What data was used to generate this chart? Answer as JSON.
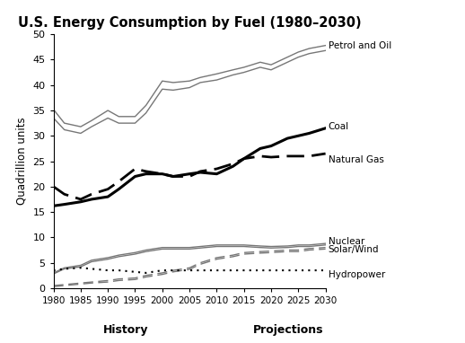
{
  "title": "U.S. Energy Consumption by Fuel (1980–2030)",
  "ylabel": "Quadrillion units",
  "xlabel_history": "History",
  "xlabel_projections": "Projections",
  "years": [
    1980,
    1982,
    1985,
    1987,
    1990,
    1992,
    1995,
    1997,
    2000,
    2002,
    2005,
    2007,
    2010,
    2013,
    2015,
    2018,
    2020,
    2023,
    2025,
    2027,
    2030
  ],
  "petrol_upper": [
    35.2,
    32.5,
    31.8,
    33.0,
    35.0,
    33.8,
    33.8,
    36.0,
    40.8,
    40.5,
    40.8,
    41.5,
    42.2,
    43.0,
    43.5,
    44.5,
    44.0,
    45.5,
    46.5,
    47.2,
    47.8
  ],
  "petrol_lower": [
    33.5,
    31.2,
    30.5,
    31.8,
    33.5,
    32.5,
    32.5,
    34.5,
    39.2,
    39.0,
    39.5,
    40.5,
    41.0,
    42.0,
    42.5,
    43.5,
    43.0,
    44.5,
    45.5,
    46.2,
    46.8
  ],
  "coal": [
    16.2,
    16.5,
    17.0,
    17.5,
    18.0,
    19.5,
    22.0,
    22.5,
    22.5,
    22.0,
    22.5,
    22.8,
    22.5,
    24.0,
    25.5,
    27.5,
    28.0,
    29.5,
    30.0,
    30.5,
    31.5
  ],
  "natural_gas": [
    20.0,
    18.5,
    17.5,
    18.5,
    19.5,
    21.0,
    23.5,
    23.0,
    22.5,
    22.0,
    22.0,
    23.0,
    23.5,
    24.5,
    25.5,
    26.0,
    25.8,
    26.0,
    26.0,
    26.0,
    26.5
  ],
  "nuclear_upper": [
    3.0,
    4.0,
    4.5,
    5.5,
    6.0,
    6.5,
    7.0,
    7.5,
    8.0,
    8.0,
    8.0,
    8.2,
    8.5,
    8.5,
    8.5,
    8.3,
    8.2,
    8.3,
    8.5,
    8.5,
    8.8
  ],
  "nuclear_lower": [
    2.8,
    3.8,
    4.2,
    5.2,
    5.7,
    6.2,
    6.7,
    7.2,
    7.7,
    7.7,
    7.7,
    7.9,
    8.2,
    8.2,
    8.2,
    8.0,
    7.9,
    8.0,
    8.2,
    8.2,
    8.5
  ],
  "solar_upper": [
    0.5,
    0.7,
    1.0,
    1.2,
    1.5,
    1.8,
    2.0,
    2.5,
    3.0,
    3.5,
    4.0,
    5.0,
    6.0,
    6.5,
    7.0,
    7.2,
    7.3,
    7.5,
    7.5,
    7.8,
    8.0
  ],
  "solar_lower": [
    0.3,
    0.5,
    0.8,
    1.0,
    1.2,
    1.5,
    1.7,
    2.2,
    2.7,
    3.2,
    3.7,
    4.7,
    5.7,
    6.2,
    6.7,
    6.9,
    7.0,
    7.2,
    7.2,
    7.5,
    7.7
  ],
  "hydropower": [
    3.5,
    3.8,
    4.0,
    3.8,
    3.5,
    3.5,
    3.2,
    3.0,
    3.5,
    3.5,
    3.5,
    3.5,
    3.5,
    3.5,
    3.5,
    3.5,
    3.5,
    3.5,
    3.5,
    3.5,
    3.5
  ],
  "projection_year": 2005,
  "ylim": [
    0,
    50
  ],
  "yticks": [
    0,
    5,
    10,
    15,
    20,
    25,
    30,
    35,
    40,
    45,
    50
  ],
  "xticks": [
    1980,
    1985,
    1990,
    1995,
    2000,
    2005,
    2010,
    2015,
    2020,
    2025,
    2030
  ],
  "label_petrol": "Petrol and Oil",
  "label_coal": "Coal",
  "label_natgas": "Natural Gas",
  "label_nuclear": "Nuclear",
  "label_solar": "Solar/Wind",
  "label_hydro": "Hydropower",
  "color_petrol": "#777777",
  "color_coal": "#000000",
  "color_natural_gas": "#000000",
  "color_nuclear": "#777777",
  "color_solar": "#777777",
  "color_hydro": "#000000",
  "background_color": "#ffffff"
}
